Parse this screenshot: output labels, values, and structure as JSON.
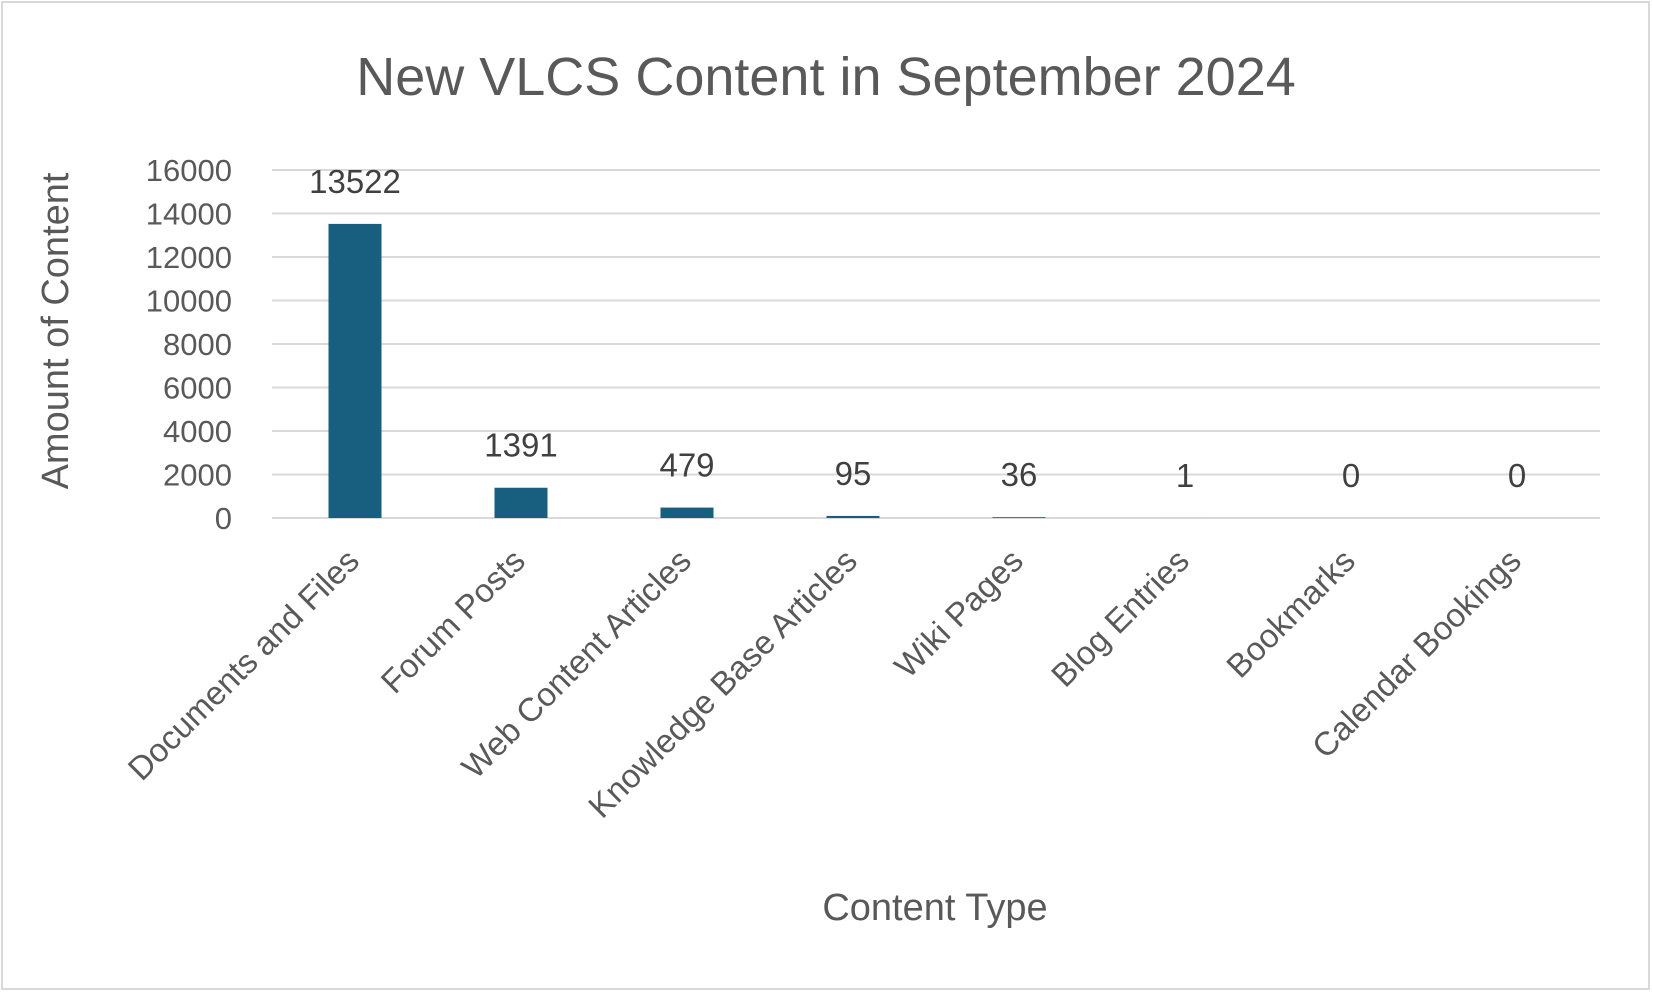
{
  "chart_data": {
    "type": "bar",
    "title": "New VLCS Content in September 2024",
    "xlabel": "Content Type",
    "ylabel": "Amount of Content",
    "categories": [
      "Documents and Files",
      "Forum Posts",
      "Web Content Articles",
      "Knowledge Base Articles",
      "Wiki Pages",
      "Blog Entries",
      "Bookmarks",
      "Calendar Bookings"
    ],
    "values": [
      13522,
      1391,
      479,
      95,
      36,
      1,
      0,
      0
    ],
    "data_labels": [
      "13522",
      "1391",
      "479",
      "95",
      "36",
      "1",
      "0",
      "0"
    ],
    "ylim": [
      0,
      16000
    ],
    "yticks": [
      0,
      2000,
      4000,
      6000,
      8000,
      10000,
      12000,
      14000,
      16000
    ],
    "ytick_labels": [
      "0",
      "2000",
      "4000",
      "6000",
      "8000",
      "10000",
      "12000",
      "14000",
      "16000"
    ],
    "grid": true,
    "legend": "none",
    "bar_color": "#175e7f"
  }
}
